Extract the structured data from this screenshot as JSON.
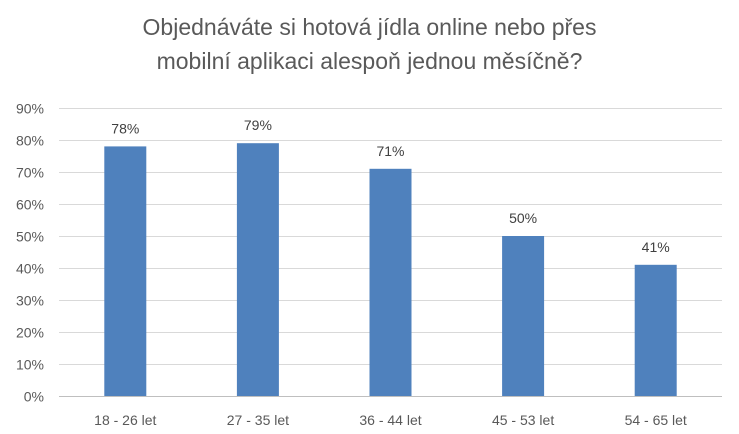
{
  "chart_data": {
    "type": "bar",
    "title_lines": [
      "Objednáváte si hotová jídla online nebo přes",
      "mobilní aplikaci alespoň jednou měsíčně?"
    ],
    "categories": [
      "18 - 26 let",
      "27 - 35 let",
      "36 - 44 let",
      "45 - 53 let",
      "54 - 65 let"
    ],
    "values": [
      78,
      79,
      71,
      50,
      41
    ],
    "data_labels": [
      "78%",
      "79%",
      "71%",
      "50%",
      "41%"
    ],
    "ylim": [
      0,
      90
    ],
    "yticks": [
      0,
      10,
      20,
      30,
      40,
      50,
      60,
      70,
      80,
      90
    ],
    "ytick_labels": [
      "0%",
      "10%",
      "20%",
      "30%",
      "40%",
      "50%",
      "60%",
      "70%",
      "80%",
      "90%"
    ],
    "grid": true,
    "legend": "none",
    "colors": {
      "bar": "#4f81bd",
      "grid": "#d9d9d9",
      "axis": "#bfbfbf",
      "text": "#595959"
    }
  }
}
